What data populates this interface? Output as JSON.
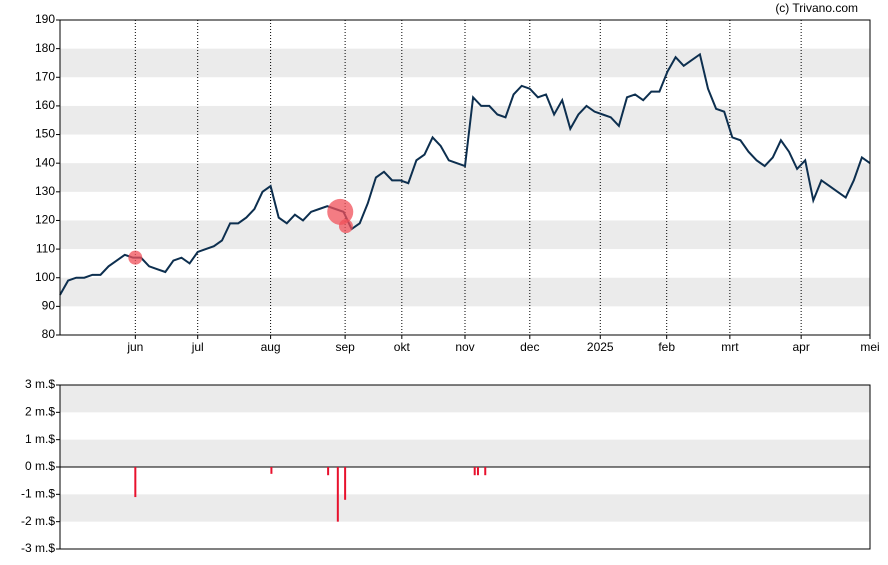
{
  "chart_data": [
    {
      "type": "line",
      "source": "(c) Trivano.com",
      "xlim": [
        0,
        100
      ],
      "xticks": [
        {
          "value": 9.3,
          "label": "jun"
        },
        {
          "value": 17,
          "label": "jul"
        },
        {
          "value": 26,
          "label": "aug"
        },
        {
          "value": 35.2,
          "label": "sep"
        },
        {
          "value": 42.2,
          "label": "okt"
        },
        {
          "value": 50,
          "label": "nov"
        },
        {
          "value": 58,
          "label": "dec"
        },
        {
          "value": 66.7,
          "label": "2025"
        },
        {
          "value": 74.9,
          "label": "feb"
        },
        {
          "value": 82.7,
          "label": "mrt"
        },
        {
          "value": 91.5,
          "label": "apr"
        },
        {
          "value": 100,
          "label": "mei"
        }
      ],
      "ylim": [
        80,
        190
      ],
      "yticks": [
        80,
        90,
        100,
        110,
        120,
        130,
        140,
        150,
        160,
        170,
        180,
        190
      ],
      "band_color": "#ebebeb",
      "series": [
        {
          "color": "#0d2f4f",
          "values": [
            94,
            99,
            100,
            100,
            101,
            101,
            104,
            106,
            108,
            107,
            107,
            104,
            103,
            102,
            106,
            107,
            105,
            109,
            110,
            111,
            113,
            119,
            119,
            121,
            124,
            130,
            132,
            121,
            119,
            122,
            120,
            123,
            124,
            125,
            124,
            123,
            117,
            119,
            126,
            135,
            137,
            134,
            134,
            133,
            141,
            143,
            149,
            146,
            141,
            140,
            139,
            163,
            160,
            160,
            157,
            156,
            164,
            167,
            166,
            163,
            164,
            157,
            162,
            152,
            157,
            160,
            158,
            157,
            156,
            153,
            163,
            164,
            162,
            165,
            165,
            172,
            177,
            174,
            176,
            178,
            166,
            159,
            158,
            149,
            148,
            144,
            141,
            139,
            142,
            148,
            144,
            138,
            141,
            127,
            134,
            132,
            130,
            128,
            134,
            142,
            140
          ]
        }
      ],
      "markers": {
        "color": "#f0505a",
        "x": [
          9.3,
          34.6,
          35.3
        ],
        "y": [
          107,
          123,
          118
        ],
        "size": [
          7,
          13,
          7
        ]
      }
    },
    {
      "type": "bar",
      "xlim": [
        0,
        100
      ],
      "ylim": [
        -3,
        3
      ],
      "yticks": [
        {
          "value": -3,
          "label": "-3 m.$"
        },
        {
          "value": -2,
          "label": "-2 m.$"
        },
        {
          "value": -1,
          "label": "-1 m.$"
        },
        {
          "value": 0,
          "label": "0 m.$"
        },
        {
          "value": 1,
          "label": "1 m.$"
        },
        {
          "value": 2,
          "label": "2 m.$"
        },
        {
          "value": 3,
          "label": "3 m.$"
        }
      ],
      "band_color": "#ebebeb",
      "color": "#e8112d",
      "x": [
        9.3,
        26.1,
        33.1,
        34.3,
        35.2,
        51.2,
        51.6,
        52.5
      ],
      "values": [
        -1.1,
        -0.25,
        -0.3,
        -2,
        -1.2,
        -0.3,
        -0.3,
        -0.3
      ]
    }
  ]
}
